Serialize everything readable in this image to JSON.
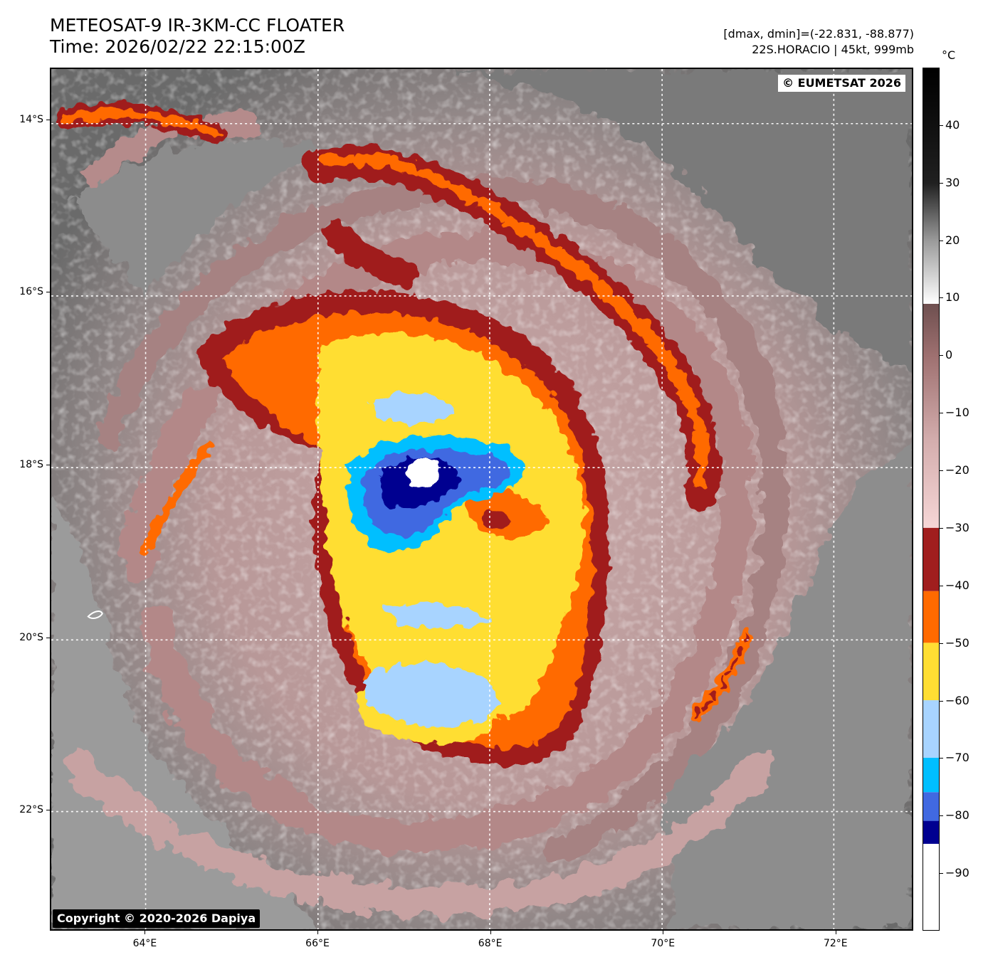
{
  "header": {
    "title_line1": "METEOSAT-9 IR-3KM-CC FLOATER",
    "title_line2": "Time: 2026/02/22 22:15:00Z",
    "info_line1": "[dmax, dmin]=(-22.831, -88.877)",
    "info_line2": "22S.HORACIO | 45kt, 999mb"
  },
  "map": {
    "watermark_top": "© EUMETSAT 2026",
    "watermark_bottom": "Copyright © 2020-2026 Dapiya",
    "lon_range": [
      62.9,
      72.9
    ],
    "lat_range": [
      -13.4,
      -23.4
    ],
    "lat_labels": [
      {
        "value": -14,
        "label": "14°S"
      },
      {
        "value": -16,
        "label": "16°S"
      },
      {
        "value": -18,
        "label": "18°S"
      },
      {
        "value": -20,
        "label": "20°S"
      },
      {
        "value": -22,
        "label": "22°S"
      }
    ],
    "lon_labels": [
      {
        "value": 64,
        "label": "64°E"
      },
      {
        "value": 66,
        "label": "66°E"
      },
      {
        "value": 68,
        "label": "68°E"
      },
      {
        "value": 70,
        "label": "70°E"
      },
      {
        "value": 72,
        "label": "72°E"
      }
    ],
    "storm_center": {
      "lon": 67.2,
      "lat": -18.05
    },
    "background_color": "#8a8a8a"
  },
  "colorbar": {
    "unit": "°C",
    "range": [
      -100,
      50
    ],
    "ticks": [
      40,
      30,
      20,
      10,
      0,
      -10,
      -20,
      -30,
      -40,
      -50,
      -60,
      -70,
      -80,
      -90
    ],
    "bands": [
      {
        "from": -100,
        "to": -85,
        "color": "#ffffff"
      },
      {
        "from": -85,
        "to": -81,
        "color": "#000090"
      },
      {
        "from": -81,
        "to": -76,
        "color": "#4169e1"
      },
      {
        "from": -76,
        "to": -70,
        "color": "#00bfff"
      },
      {
        "from": -70,
        "to": -60,
        "color": "#a8d4ff"
      },
      {
        "from": -60,
        "to": -50,
        "color": "#ffde33"
      },
      {
        "from": -50,
        "to": -41,
        "color": "#ff6a00"
      },
      {
        "from": -41,
        "to": -30,
        "color": "#a01e1e"
      }
    ],
    "gradient": [
      {
        "t": -30,
        "color": "#f6d6d6"
      },
      {
        "t": -15,
        "color": "#d4aeae"
      },
      {
        "t": 0,
        "color": "#9e7070"
      },
      {
        "t": 9,
        "color": "#6e4f4f"
      },
      {
        "t": 9.01,
        "color": "#ffffff"
      },
      {
        "t": 20,
        "color": "#9a9a9a"
      },
      {
        "t": 30,
        "color": "#202020"
      },
      {
        "t": 50,
        "color": "#000000"
      }
    ]
  }
}
